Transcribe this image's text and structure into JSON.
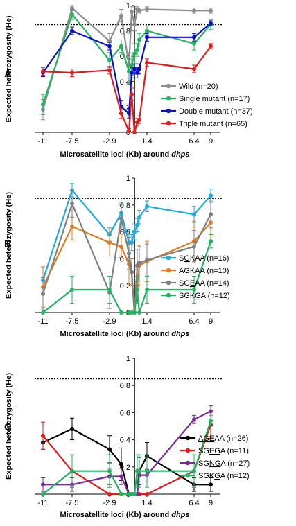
{
  "chart_data": [
    {
      "type": "line",
      "panel": "A",
      "xlabel_prefix": "Microsatellite loci (Kb) around ",
      "xlabel_italic": "dhps",
      "ylabel": "Expected heterozygosity (He)",
      "ylim": [
        0,
        1
      ],
      "y_ticks": [
        "0",
        "0.2",
        "0.4",
        "0.6",
        "0.8",
        "1"
      ],
      "x_ticks": [
        "-11",
        "-7.5",
        "-2.9",
        "1.4",
        "6.4",
        "9"
      ],
      "x_tick_values": [
        -11,
        -7.5,
        -2.9,
        1.4,
        6.4,
        9
      ],
      "reference_line": 0.85,
      "x": [
        -11,
        -7.5,
        -4,
        -2.9,
        -2,
        -1,
        -0.3,
        0,
        0.3,
        0.6,
        1,
        1.4,
        6.4,
        9
      ],
      "legend_position": "lower-right",
      "series": [
        {
          "name": "Wild (n=20)",
          "color": "#8c8c8c",
          "values": [
            0.18,
            0.98,
            null,
            0.72,
            0.92,
            0.53,
            0.95,
            0.85,
            0.97,
            0.96,
            null,
            0.97,
            0.96,
            0.96
          ],
          "errors": [
            0.08,
            0.02,
            null,
            0.06,
            0.05,
            0.1,
            0.04,
            0.05,
            0.02,
            0.02,
            null,
            0.02,
            0.02,
            0.02
          ]
        },
        {
          "name": "Single mutant (n=17)",
          "color": "#22b260",
          "values": [
            0.22,
            0.93,
            null,
            0.57,
            0.68,
            0.48,
            0.53,
            0.62,
            0.65,
            0.73,
            null,
            0.8,
            0.7,
            0.85
          ],
          "errors": [
            0.08,
            0.04,
            null,
            0.06,
            0.05,
            0.1,
            0.08,
            0.08,
            0.05,
            0.05,
            null,
            0.04,
            0.05,
            0.04
          ]
        },
        {
          "name": "Double mutant (n=37)",
          "color": "#0a10c8",
          "values": [
            0.47,
            0.8,
            null,
            0.68,
            0.2,
            0.15,
            0.47,
            0.5,
            0.47,
            0.5,
            null,
            0.75,
            0.75,
            0.86
          ],
          "errors": [
            0.03,
            0.03,
            null,
            0.03,
            0.05,
            0.04,
            0.04,
            0.04,
            0.04,
            0.04,
            null,
            0.03,
            0.03,
            0.02
          ]
        },
        {
          "name": "Triple mutant (n=65)",
          "color": "#e11a1a",
          "values": [
            0.48,
            0.47,
            null,
            0.49,
            0.15,
            0.01,
            0.3,
            0.0,
            0.08,
            0.1,
            null,
            0.55,
            0.5,
            0.68
          ],
          "errors": [
            0.03,
            0.03,
            null,
            0.03,
            0.04,
            0.02,
            0.05,
            0.02,
            0.03,
            0.03,
            null,
            0.03,
            0.03,
            0.02
          ]
        }
      ]
    },
    {
      "type": "line",
      "panel": "B",
      "xlabel_prefix": "Microsatellite loci (Kb) around ",
      "xlabel_italic": "dhps",
      "ylabel": "Expected heterozygosity (He)",
      "ylim": [
        0,
        1
      ],
      "y_ticks": [
        "0",
        "0.2",
        "0.4",
        "0.6",
        "0.8",
        "1"
      ],
      "x_ticks": [
        "-11",
        "-7.5",
        "-2.9",
        "1.4",
        "6.4",
        "9"
      ],
      "x_tick_values": [
        -11,
        -7.5,
        -2.9,
        1.4,
        6.4,
        9
      ],
      "reference_line": 0.85,
      "x": [
        -11,
        -7.5,
        -4,
        -2.9,
        -2,
        -1,
        -0.3,
        0,
        0.3,
        0.6,
        1,
        1.4,
        6.4,
        9
      ],
      "legend_position": "lower-right",
      "series": [
        {
          "name": "SGKAA (n=16)",
          "label_prefix": "S",
          "label_underlined": "G",
          "label_suffix": "KAA (n=16)",
          "color": "#1fa9e1",
          "values": [
            0.24,
            0.91,
            null,
            0.58,
            0.74,
            0.52,
            0.52,
            0.6,
            0.65,
            0.71,
            null,
            0.79,
            0.73,
            0.87
          ],
          "errors": [
            0.1,
            0.05,
            null,
            0.05,
            0.08,
            0.1,
            0.06,
            0.06,
            0.05,
            0.05,
            null,
            0.04,
            0.06,
            0.05
          ]
        },
        {
          "name": "AGKAA (n=10)",
          "label_prefix": "",
          "label_underlined": "A",
          "label_suffix": "GKAA (n=10)",
          "color": "#e47b1b",
          "values": [
            0.19,
            0.64,
            null,
            0.52,
            0.49,
            0.36,
            0.3,
            0.0,
            0.2,
            0.35,
            null,
            0.38,
            0.53,
            0.67
          ],
          "errors": [
            0.15,
            0.1,
            null,
            0.1,
            0.08,
            0.15,
            0.1,
            0.02,
            0.12,
            0.15,
            null,
            0.15,
            0.15,
            0.1
          ]
        },
        {
          "name": "SGEAA (n=14)",
          "label_prefix": "SG",
          "label_underlined": "E",
          "label_suffix": "AA (n=14)",
          "color": "#808080",
          "values": [
            0.14,
            0.81,
            null,
            0.15,
            0.7,
            0.44,
            0.3,
            0.0,
            0.35,
            0.37,
            null,
            0.39,
            0.49,
            0.73
          ],
          "errors": [
            0.12,
            0.1,
            null,
            0.12,
            0.1,
            0.12,
            0.1,
            0.02,
            0.12,
            0.12,
            null,
            0.12,
            0.12,
            0.1
          ]
        },
        {
          "name": "SGKGA (n=12)",
          "label_prefix": "SGK",
          "label_underlined": "G",
          "label_suffix": "A (n=12)",
          "color": "#22b260",
          "values": [
            0.0,
            0.17,
            null,
            0.17,
            0.0,
            0.0,
            0.0,
            0.0,
            0.17,
            0.0,
            null,
            0.17,
            0.17,
            0.53
          ],
          "errors": [
            0.0,
            0.1,
            null,
            0.1,
            0.0,
            0.0,
            0.0,
            0.0,
            0.1,
            0.0,
            null,
            0.1,
            0.1,
            0.05
          ]
        }
      ]
    },
    {
      "type": "line",
      "panel": "C",
      "xlabel_prefix": "Microsatellite loci (Kb) around ",
      "xlabel_italic": "dhps",
      "ylabel": "Expected heterozygosity (He)",
      "ylim": [
        0,
        1
      ],
      "y_ticks": [
        "0",
        "0.2",
        "0.4",
        "0.6",
        "0.8",
        "1"
      ],
      "x_ticks": [
        "-11",
        "-7.5",
        "-2.9",
        "1.4",
        "6.4",
        "9"
      ],
      "x_tick_values": [
        -11,
        -7.5,
        -2.9,
        1.4,
        6.4,
        9
      ],
      "reference_line": 0.85,
      "x": [
        -11,
        -7.5,
        -4,
        -2.9,
        -2,
        -1,
        -0.3,
        0,
        0.3,
        0.6,
        1,
        1.4,
        6.4,
        9
      ],
      "legend_position": "lower-right",
      "series": [
        {
          "name": "AGEAA (n=26)",
          "label_prefix": "",
          "label_underlined": "AGE",
          "label_suffix": "AA (n=26)",
          "color": "#000000",
          "values": [
            0.38,
            0.48,
            null,
            0.33,
            0.22,
            0.0,
            0.0,
            0.0,
            0.0,
            0.17,
            null,
            0.28,
            0.07,
            0.07
          ],
          "errors": [
            0.05,
            0.08,
            null,
            0.1,
            0.12,
            0.0,
            0.0,
            0.0,
            0.0,
            0.1,
            null,
            0.1,
            0.05,
            0.05
          ]
        },
        {
          "name": "SGEGA (n=11)",
          "label_prefix": "SG",
          "label_underlined": "EG",
          "label_suffix": "A (n=11)",
          "color": "#e11a1a",
          "values": [
            0.43,
            0.17,
            null,
            0.0,
            0.0,
            0.0,
            0.0,
            0.0,
            0.0,
            0.0,
            null,
            0.0,
            0.17,
            0.51
          ],
          "errors": [
            0.1,
            0.12,
            null,
            0.0,
            0.0,
            0.0,
            0.0,
            0.0,
            0.0,
            0.0,
            null,
            0.0,
            0.12,
            0.1
          ]
        },
        {
          "name": "SGNGA (n=27)",
          "label_prefix": "SG",
          "label_underlined": "NG",
          "label_suffix": "A (n=27)",
          "color": "#7b2b9b",
          "values": [
            0.07,
            0.07,
            null,
            0.13,
            0.13,
            0.0,
            0.0,
            0.0,
            0.0,
            0.14,
            null,
            0.14,
            0.55,
            0.61
          ],
          "errors": [
            0.05,
            0.05,
            null,
            0.06,
            0.06,
            0.0,
            0.0,
            0.0,
            0.0,
            0.05,
            null,
            0.05,
            0.03,
            0.04
          ]
        },
        {
          "name": "SGKGA (n=12)",
          "label_prefix": "SGK",
          "label_underlined": "G",
          "label_suffix": "A (n=12)",
          "color": "#22b260",
          "values": [
            0.0,
            0.17,
            null,
            0.17,
            0.0,
            0.0,
            0.0,
            0.0,
            0.17,
            0.17,
            null,
            0.17,
            0.17,
            0.54
          ],
          "errors": [
            0.0,
            0.12,
            null,
            0.12,
            0.0,
            0.0,
            0.0,
            0.0,
            0.12,
            0.12,
            null,
            0.12,
            0.12,
            0.04
          ]
        }
      ]
    }
  ]
}
